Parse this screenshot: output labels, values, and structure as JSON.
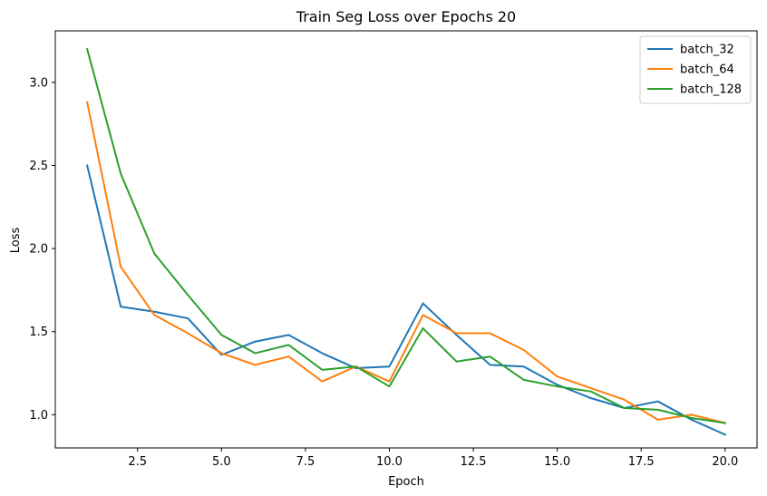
{
  "chart_data": {
    "type": "line",
    "title": "Train Seg Loss over Epochs 20",
    "xlabel": "Epoch",
    "ylabel": "Loss",
    "xlim": [
      0.05,
      20.95
    ],
    "ylim": [
      0.8,
      3.31
    ],
    "xticks": [
      2.5,
      5.0,
      7.5,
      10.0,
      12.5,
      15.0,
      17.5,
      20.0
    ],
    "xtick_labels": [
      "2.5",
      "5.0",
      "7.5",
      "10.0",
      "12.5",
      "15.0",
      "17.5",
      "20.0"
    ],
    "yticks": [
      1.0,
      1.5,
      2.0,
      2.5,
      3.0
    ],
    "ytick_labels": [
      "1.0",
      "1.5",
      "2.0",
      "2.5",
      "3.0"
    ],
    "grid": false,
    "legend_position": "top-right",
    "x": [
      1,
      2,
      3,
      4,
      5,
      6,
      7,
      8,
      9,
      10,
      11,
      12,
      13,
      14,
      15,
      16,
      17,
      18,
      19,
      20
    ],
    "series": [
      {
        "name": "batch_32",
        "color": "#1f77b4",
        "values": [
          2.5,
          1.65,
          1.62,
          1.58,
          1.36,
          1.44,
          1.48,
          1.37,
          1.28,
          1.29,
          1.67,
          1.48,
          1.3,
          1.29,
          1.18,
          1.1,
          1.04,
          1.08,
          0.97,
          0.88
        ]
      },
      {
        "name": "batch_64",
        "color": "#ff7f0e",
        "values": [
          2.88,
          1.89,
          1.6,
          1.49,
          1.37,
          1.3,
          1.35,
          1.2,
          1.29,
          1.2,
          1.6,
          1.49,
          1.49,
          1.39,
          1.23,
          1.16,
          1.09,
          0.97,
          1.0,
          0.95
        ]
      },
      {
        "name": "batch_128",
        "color": "#2ca02c",
        "values": [
          3.2,
          2.45,
          1.97,
          1.72,
          1.48,
          1.37,
          1.42,
          1.27,
          1.29,
          1.17,
          1.52,
          1.32,
          1.35,
          1.21,
          1.17,
          1.14,
          1.04,
          1.03,
          0.98,
          0.95
        ]
      }
    ]
  }
}
